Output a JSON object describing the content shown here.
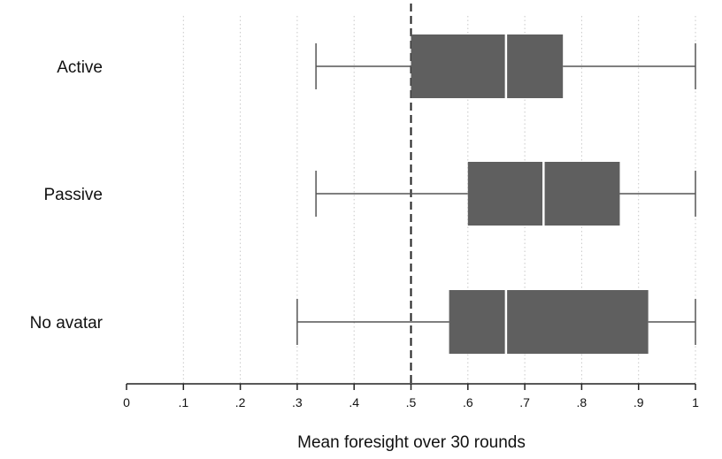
{
  "chart_data": {
    "type": "boxplot",
    "orientation": "horizontal",
    "title": "",
    "xlabel": "Mean foresight over 30 rounds",
    "ylabel": "",
    "xlim": [
      0,
      1
    ],
    "x_ticks": [
      0,
      0.1,
      0.2,
      0.3,
      0.4,
      0.5,
      0.6,
      0.7,
      0.8,
      0.9,
      1
    ],
    "x_tick_labels": [
      "0",
      ".1",
      ".2",
      ".3",
      ".4",
      ".5",
      ".6",
      ".7",
      ".8",
      ".9",
      "1"
    ],
    "grid": "vertical dotted",
    "reference_line": {
      "x": 0.5,
      "style": "dashed"
    },
    "box_color": "#5f5f5f",
    "median_color": "#ffffff",
    "categories": [
      "Active",
      "Passive",
      "No avatar"
    ],
    "boxes": [
      {
        "category": "Active",
        "min": 0.333,
        "q1": 0.5,
        "median": 0.667,
        "q3": 0.767,
        "max": 1.0
      },
      {
        "category": "Passive",
        "min": 0.333,
        "q1": 0.6,
        "median": 0.733,
        "q3": 0.867,
        "max": 1.0
      },
      {
        "category": "No avatar",
        "min": 0.3,
        "q1": 0.567,
        "median": 0.667,
        "q3": 0.917,
        "max": 1.0
      }
    ]
  }
}
